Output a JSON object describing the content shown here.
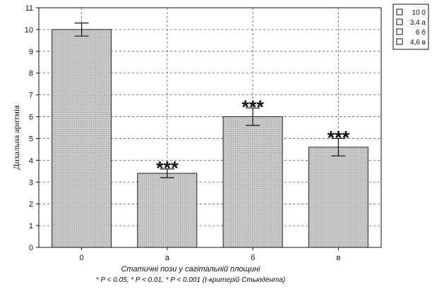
{
  "chart_data": {
    "type": "bar",
    "categories": [
      "0",
      "a",
      "б",
      "в"
    ],
    "values": [
      10.0,
      3.4,
      6.0,
      4.6
    ],
    "errors": [
      0.3,
      0.2,
      0.4,
      0.4
    ],
    "significance": [
      "",
      "***",
      "***",
      "***"
    ],
    "title": "",
    "xlabel": "Статичні пози у сагітальній площині",
    "footnote": "* P < 0.05, * P < 0.01, * P < 0.001 (t-критерій Стьюдента)",
    "ylabel": "Дихальна аритмія",
    "ylim": [
      0,
      11
    ],
    "yticks": [
      "0",
      "1",
      "2",
      "3",
      "4",
      "5",
      "6",
      "7",
      "8",
      "9",
      "10",
      "11"
    ],
    "grid": true,
    "legend_position": "top-right",
    "legend": [
      "10 0",
      "3,4 a",
      "6 б",
      "4,6 в"
    ],
    "colors": {
      "bar_fill": "#c8c8c8",
      "bar_stroke": "#222222",
      "grid": "#555555"
    }
  }
}
